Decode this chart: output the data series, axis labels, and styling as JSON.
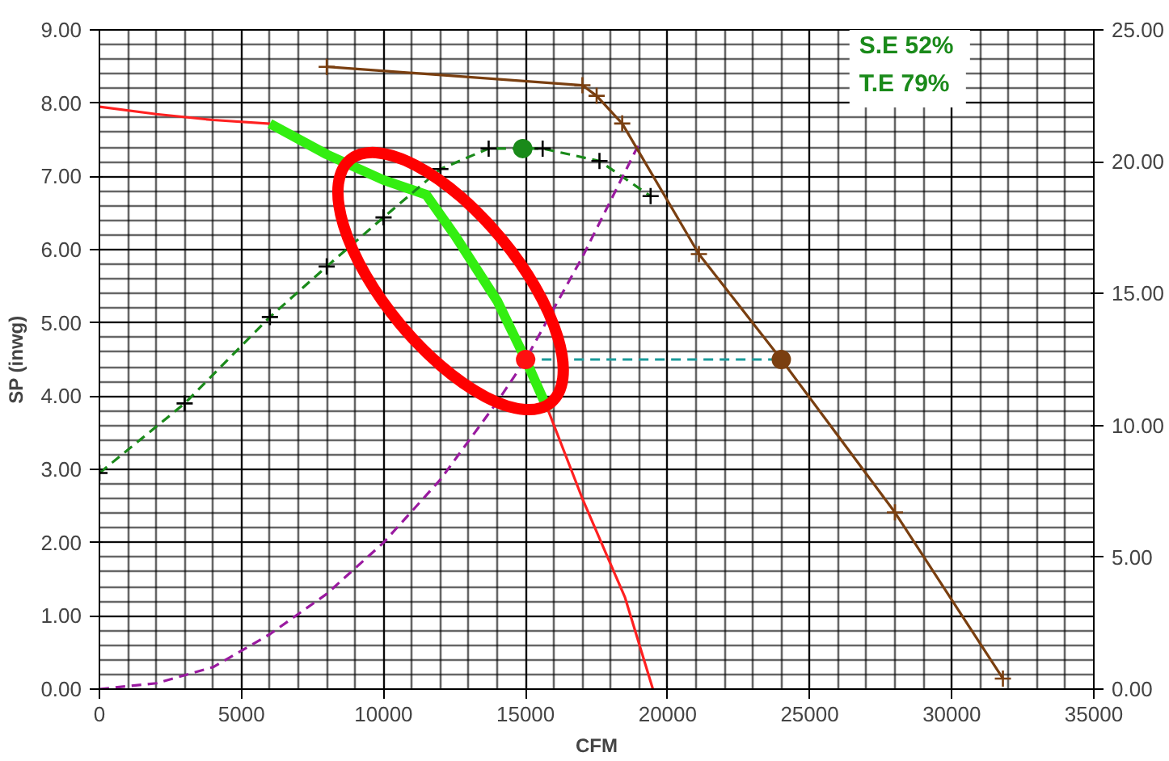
{
  "chart_data": {
    "type": "line",
    "xlabel": "CFM",
    "ylabel": "SP (inwg)",
    "xlim": [
      0,
      35000
    ],
    "xticks": [
      0,
      5000,
      10000,
      15000,
      20000,
      25000,
      30000,
      35000
    ],
    "ylim": [
      0,
      9
    ],
    "yticks": [
      {
        "value": 0,
        "label": "0.00"
      },
      {
        "value": 1,
        "label": "1.00"
      },
      {
        "value": 2,
        "label": "2.00"
      },
      {
        "value": 3,
        "label": "3.00"
      },
      {
        "value": 4,
        "label": "4.00"
      },
      {
        "value": 5,
        "label": "5.00"
      },
      {
        "value": 6,
        "label": "6.00"
      },
      {
        "value": 7,
        "label": "7.00"
      },
      {
        "value": 8,
        "label": "8.00"
      },
      {
        "value": 9,
        "label": "9.00"
      }
    ],
    "y2lim": [
      0,
      25
    ],
    "y2ticks": [
      {
        "value": 0,
        "label": "0.00"
      },
      {
        "value": 5,
        "label": "5.00"
      },
      {
        "value": 10,
        "label": "10.00"
      },
      {
        "value": 15,
        "label": "15.00"
      },
      {
        "value": 20,
        "label": "20.00"
      },
      {
        "value": 25,
        "label": "25.00"
      }
    ],
    "grid": true,
    "series": [
      {
        "color": "#ff2020",
        "marker": "none",
        "line_style": "solid",
        "x": [
          0,
          2000,
          4000,
          6000,
          8000,
          10000,
          11500,
          12500,
          14000,
          15000,
          15800,
          17000,
          18500,
          19480
        ],
        "values": [
          7.95,
          7.85,
          7.77,
          7.72,
          null,
          null,
          null,
          null,
          null,
          4.5,
          3.8,
          2.6,
          1.25,
          0
        ]
      },
      {
        "color": "#33ee11",
        "marker": "none",
        "line_style": "solid",
        "x": [
          6000,
          8000,
          10000,
          11500,
          12500,
          14000,
          15000,
          15800
        ],
        "values": [
          7.72,
          7.3,
          6.95,
          6.75,
          6.2,
          5.3,
          4.5,
          3.8
        ]
      },
      {
        "color": "#1a8a1a",
        "marker": "cross",
        "line_style": "dashed",
        "x": [
          0,
          3000,
          6000,
          8000,
          10000,
          12000,
          13700,
          15600,
          17600,
          19400
        ],
        "values": [
          2.95,
          3.9,
          5.08,
          5.77,
          6.44,
          7.1,
          7.38,
          7.38,
          7.21,
          6.73
        ]
      },
      {
        "color": "#9a1aa0",
        "marker": "none",
        "line_style": "dashed",
        "x": [
          0,
          2000,
          4000,
          6000,
          8000,
          10000,
          12000,
          14000,
          15000,
          17000,
          19000
        ],
        "values": [
          0,
          0.08,
          0.3,
          0.75,
          1.3,
          2.0,
          2.86,
          3.92,
          4.5,
          5.9,
          7.45
        ]
      },
      {
        "axis": "y2",
        "color": "#7a3f10",
        "marker": "cross",
        "line_style": "solid",
        "x": [
          8000,
          17000,
          17500,
          18400,
          21100,
          24000,
          28000,
          31800
        ],
        "values": [
          23.6,
          22.9,
          22.5,
          21.45,
          16.5,
          12.5,
          6.7,
          0.4
        ]
      },
      {
        "color": "#1a9a9a",
        "marker": "none",
        "line_style": "dashed",
        "x": [
          15000,
          24000
        ],
        "values": [
          4.5,
          4.5
        ]
      },
      {
        "type": "scatter",
        "color": "#ff1010",
        "marker": "circle",
        "x": [
          15000
        ],
        "values": [
          4.5
        ]
      },
      {
        "type": "scatter",
        "color": "#1a8a1a",
        "marker": "circle",
        "x": [
          14900
        ],
        "values": [
          7.38
        ]
      },
      {
        "type": "scatter",
        "axis": "y2",
        "color": "#7a3f10",
        "marker": "circle",
        "x": [
          24000
        ],
        "values": [
          12.5
        ]
      }
    ],
    "annotations": [
      "S.E  52%",
      "T.E  79%"
    ]
  }
}
